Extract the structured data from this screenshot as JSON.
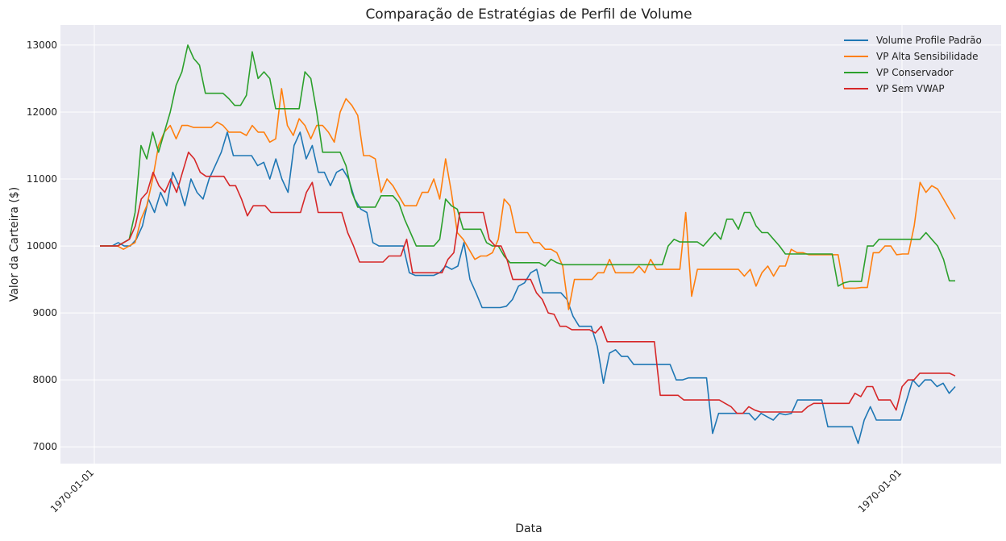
{
  "chart_data": {
    "type": "line",
    "title": "Comparação de Estratégias de Perfil de Volume",
    "xlabel": "Data",
    "ylabel": "Valor da Carteira ($)",
    "x_tick_labels": [
      "1970-01-01",
      "1970-01-01"
    ],
    "y_ticks": [
      7000,
      8000,
      9000,
      10000,
      11000,
      12000,
      13000
    ],
    "ylim": [
      6750,
      13300
    ],
    "grid": true,
    "legend_position": "top-right",
    "series": [
      {
        "name": "Volume Profile Padrão",
        "color": "#1f77b4",
        "values": [
          10000,
          10000,
          10000,
          10050,
          10000,
          10000,
          10100,
          10300,
          10700,
          10500,
          10800,
          10600,
          11100,
          10900,
          10600,
          11000,
          10800,
          10700,
          11000,
          11200,
          11400,
          11700,
          11350,
          11350,
          11350,
          11350,
          11200,
          11250,
          11000,
          11300,
          11000,
          10800,
          11500,
          11700,
          11300,
          11500,
          11100,
          11100,
          10900,
          11100,
          11150,
          11000,
          10700,
          10550,
          10500,
          10050,
          10000,
          10000,
          10000,
          10000,
          10000,
          9600,
          9560,
          9560,
          9560,
          9560,
          9600,
          9700,
          9650,
          9700,
          10050,
          9500,
          9300,
          9080,
          9080,
          9080,
          9080,
          9100,
          9200,
          9400,
          9450,
          9600,
          9650,
          9300,
          9300,
          9300,
          9300,
          9200,
          8950,
          8800,
          8800,
          8800,
          8500,
          7950,
          8400,
          8450,
          8350,
          8350,
          8230,
          8230,
          8230,
          8230,
          8230,
          8230,
          8230,
          8000,
          8000,
          8030,
          8030,
          8030,
          8030,
          7200,
          7500,
          7500,
          7500,
          7500,
          7500,
          7500,
          7400,
          7500,
          7450,
          7400,
          7500,
          7480,
          7500,
          7700,
          7700,
          7700,
          7700,
          7700,
          7300,
          7300,
          7300,
          7300,
          7300,
          7050,
          7400,
          7600,
          7400,
          7400,
          7400,
          7400,
          7400,
          7700,
          8000,
          7900,
          8000,
          8000,
          7900,
          7950,
          7800,
          7900
        ]
      },
      {
        "name": "VP Alta Sensibilidade",
        "color": "#ff7f0e",
        "values": [
          10000,
          10000,
          10000,
          10000,
          9950,
          10000,
          10050,
          10400,
          10600,
          11000,
          11500,
          11700,
          11800,
          11600,
          11800,
          11800,
          11770,
          11770,
          11770,
          11770,
          11850,
          11800,
          11700,
          11700,
          11700,
          11650,
          11800,
          11700,
          11700,
          11550,
          11600,
          12350,
          11800,
          11650,
          11900,
          11800,
          11600,
          11800,
          11800,
          11700,
          11550,
          12000,
          12200,
          12100,
          11950,
          11350,
          11350,
          11300,
          10800,
          11000,
          10900,
          10750,
          10600,
          10600,
          10600,
          10800,
          10800,
          11000,
          10700,
          11300,
          10800,
          10200,
          10100,
          9950,
          9800,
          9850,
          9850,
          9900,
          10100,
          10700,
          10600,
          10200,
          10200,
          10200,
          10050,
          10050,
          9950,
          9950,
          9900,
          9700,
          9050,
          9500,
          9500,
          9500,
          9500,
          9600,
          9600,
          9800,
          9600,
          9600,
          9600,
          9600,
          9700,
          9600,
          9800,
          9650,
          9650,
          9650,
          9650,
          9650,
          10500,
          9250,
          9650,
          9650,
          9650,
          9650,
          9650,
          9650,
          9650,
          9650,
          9550,
          9650,
          9400,
          9600,
          9700,
          9550,
          9700,
          9700,
          9950,
          9900,
          9900,
          9870,
          9870,
          9870,
          9870,
          9870,
          9870,
          9370,
          9370,
          9370,
          9380,
          9380,
          9900,
          9900,
          10000,
          10000,
          9870,
          9880,
          9880,
          10300,
          10950,
          10800,
          10900,
          10850,
          10700,
          10550,
          10400
        ]
      },
      {
        "name": "VP Conservador",
        "color": "#2ca02c",
        "values": [
          10000,
          10000,
          10000,
          10000,
          10050,
          10100,
          10500,
          11500,
          11300,
          11700,
          11400,
          11700,
          12000,
          12400,
          12600,
          13000,
          12800,
          12700,
          12280,
          12280,
          12280,
          12280,
          12200,
          12100,
          12100,
          12250,
          12900,
          12500,
          12600,
          12500,
          12050,
          12050,
          12050,
          12050,
          12050,
          12600,
          12500,
          12000,
          11400,
          11400,
          11400,
          11400,
          11200,
          10800,
          10580,
          10580,
          10580,
          10580,
          10750,
          10750,
          10750,
          10650,
          10400,
          10200,
          10000,
          10000,
          10000,
          10000,
          10100,
          10700,
          10600,
          10550,
          10250,
          10250,
          10250,
          10250,
          10050,
          10000,
          10000,
          9850,
          9750,
          9750,
          9750,
          9750,
          9750,
          9750,
          9700,
          9800,
          9750,
          9720,
          9720,
          9720,
          9720,
          9720,
          9720,
          9720,
          9720,
          9720,
          9720,
          9720,
          9720,
          9720,
          9720,
          9720,
          9720,
          9720,
          9720,
          10000,
          10100,
          10060,
          10060,
          10060,
          10060,
          10000,
          10100,
          10200,
          10100,
          10400,
          10400,
          10250,
          10500,
          10500,
          10300,
          10200,
          10200,
          10100,
          10000,
          9880,
          9880,
          9880,
          9880,
          9880,
          9880,
          9880,
          9880,
          9880,
          9400,
          9450,
          9470,
          9470,
          9470,
          10000,
          10000,
          10100,
          10100,
          10100,
          10100,
          10100,
          10100,
          10100,
          10100,
          10200,
          10100,
          10000,
          9800,
          9480,
          9480
        ]
      },
      {
        "name": "VP Sem VWAP",
        "color": "#d62728",
        "values": [
          10000,
          10000,
          10000,
          10000,
          10050,
          10100,
          10300,
          10700,
          10800,
          11100,
          10900,
          10800,
          11000,
          10800,
          11100,
          11400,
          11300,
          11100,
          11040,
          11040,
          11040,
          11040,
          10900,
          10900,
          10700,
          10450,
          10600,
          10600,
          10600,
          10500,
          10500,
          10500,
          10500,
          10500,
          10500,
          10800,
          10950,
          10500,
          10500,
          10500,
          10500,
          10500,
          10200,
          10000,
          9760,
          9760,
          9760,
          9760,
          9760,
          9850,
          9850,
          9850,
          10100,
          9600,
          9600,
          9600,
          9600,
          9600,
          9600,
          9800,
          9900,
          10500,
          10500,
          10500,
          10500,
          10500,
          10100,
          10000,
          10000,
          9800,
          9500,
          9500,
          9500,
          9500,
          9300,
          9200,
          9000,
          8980,
          8800,
          8800,
          8750,
          8750,
          8750,
          8750,
          8700,
          8800,
          8570,
          8570,
          8570,
          8570,
          8570,
          8570,
          8570,
          8570,
          8570,
          7770,
          7770,
          7770,
          7770,
          7700,
          7700,
          7700,
          7700,
          7700,
          7700,
          7700,
          7650,
          7600,
          7500,
          7500,
          7600,
          7550,
          7520,
          7520,
          7520,
          7520,
          7520,
          7520,
          7520,
          7520,
          7600,
          7650,
          7650,
          7650,
          7650,
          7650,
          7650,
          7650,
          7800,
          7750,
          7900,
          7900,
          7700,
          7700,
          7700,
          7550,
          7900,
          8000,
          8000,
          8100,
          8100,
          8100,
          8100,
          8100,
          8100,
          8060
        ]
      }
    ]
  }
}
